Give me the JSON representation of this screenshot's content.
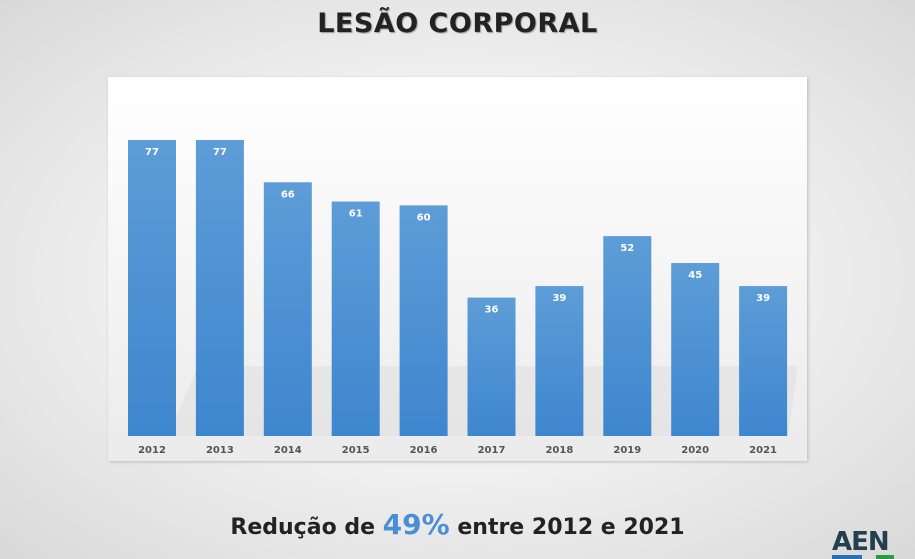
{
  "title": "LESÃO CORPORAL",
  "subtitle": {
    "pre": "Redução de ",
    "highlight": "49%",
    "post": " entre 2012 e 2021"
  },
  "logo": "AEN",
  "colors": {
    "bar": "#5b9bd5",
    "bar_dark": "#3e86cf",
    "highlight": "#4a8fd6"
  },
  "chart_data": {
    "type": "bar",
    "categories": [
      "2012",
      "2013",
      "2014",
      "2015",
      "2016",
      "2017",
      "2018",
      "2019",
      "2020",
      "2021"
    ],
    "values": [
      77,
      77,
      66,
      61,
      60,
      36,
      39,
      52,
      45,
      39
    ],
    "data_labels": true,
    "grid": false,
    "title": "",
    "xlabel": "",
    "ylabel": ""
  }
}
